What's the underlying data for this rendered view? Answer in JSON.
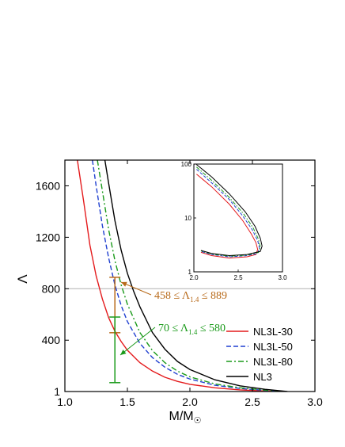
{
  "chart_data": [
    {
      "type": "line",
      "xlabel": "M/M",
      "xlabel_symbol": "☉",
      "ylabel": "Λ",
      "xlim": [
        1.0,
        3.0
      ],
      "ylim": [
        1,
        1800
      ],
      "xticks": [
        "1.0",
        "1.5",
        "2.0",
        "2.5",
        "3.0"
      ],
      "yticks": [
        "1",
        "400",
        "800",
        "1200",
        "1600"
      ],
      "xtick_values": [
        1.0,
        1.5,
        2.0,
        2.5,
        3.0
      ],
      "ytick_values": [
        1,
        400,
        800,
        1200,
        1600
      ],
      "reference_line": {
        "y": 800,
        "color": "#b0b0b0"
      },
      "legend_position": "bottom-right",
      "series": [
        {
          "name": "NL3L-30",
          "color": "#e41a1c",
          "dash": "solid",
          "points": [
            [
              1.1,
              1800
            ],
            [
              1.15,
              1480
            ],
            [
              1.2,
              1140
            ],
            [
              1.25,
              900
            ],
            [
              1.3,
              720
            ],
            [
              1.35,
              575
            ],
            [
              1.4,
              470
            ],
            [
              1.45,
              390
            ],
            [
              1.5,
              322
            ],
            [
              1.6,
              225
            ],
            [
              1.7,
              160
            ],
            [
              1.8,
              112
            ],
            [
              1.9,
              80
            ],
            [
              2.0,
              57
            ],
            [
              2.2,
              30
            ],
            [
              2.4,
              14
            ],
            [
              2.6,
              5
            ],
            [
              2.72,
              1
            ]
          ]
        },
        {
          "name": "NL3L-50",
          "color": "#1f3fd0",
          "dash": "dashed",
          "points": [
            [
              1.22,
              1800
            ],
            [
              1.25,
              1600
            ],
            [
              1.3,
              1290
            ],
            [
              1.35,
              1040
            ],
            [
              1.4,
              830
            ],
            [
              1.45,
              670
            ],
            [
              1.5,
              545
            ],
            [
              1.6,
              375
            ],
            [
              1.7,
              265
            ],
            [
              1.8,
              190
            ],
            [
              1.9,
              135
            ],
            [
              2.0,
              98
            ],
            [
              2.2,
              50
            ],
            [
              2.4,
              25
            ],
            [
              2.6,
              10
            ],
            [
              2.76,
              1
            ]
          ]
        },
        {
          "name": "NL3L-80",
          "color": "#1a9a1a",
          "dash": "dashdot",
          "points": [
            [
              1.26,
              1800
            ],
            [
              1.3,
              1560
            ],
            [
              1.35,
              1260
            ],
            [
              1.4,
              1020
            ],
            [
              1.45,
              830
            ],
            [
              1.5,
              680
            ],
            [
              1.6,
              460
            ],
            [
              1.7,
              320
            ],
            [
              1.8,
              225
            ],
            [
              1.9,
              160
            ],
            [
              2.0,
              115
            ],
            [
              2.2,
              60
            ],
            [
              2.4,
              30
            ],
            [
              2.6,
              12
            ],
            [
              2.77,
              1
            ]
          ]
        },
        {
          "name": "NL3",
          "color": "#000000",
          "dash": "solid",
          "points": [
            [
              1.32,
              1800
            ],
            [
              1.35,
              1620
            ],
            [
              1.4,
              1330
            ],
            [
              1.45,
              1100
            ],
            [
              1.5,
              920
            ],
            [
              1.55,
              780
            ],
            [
              1.6,
              660
            ],
            [
              1.7,
              460
            ],
            [
              1.8,
              330
            ],
            [
              1.9,
              235
            ],
            [
              2.0,
              172
            ],
            [
              2.2,
              92
            ],
            [
              2.4,
              45
            ],
            [
              2.6,
              18
            ],
            [
              2.78,
              1
            ]
          ]
        }
      ],
      "error_bars": [
        {
          "x": 1.4,
          "low": 458,
          "high": 889,
          "color": "#b86a1a",
          "label_prefix": "458 ≤ Λ",
          "label_sub": "1.4",
          "label_suffix": " ≤ 889"
        },
        {
          "x": 1.4,
          "low": 70,
          "high": 580,
          "color": "#1a9a1a",
          "label_prefix": "70 ≤ Λ",
          "label_sub": "1.4",
          "label_suffix": " ≤ 580"
        }
      ]
    },
    {
      "type": "line",
      "inset": true,
      "scale_y": "log",
      "xlim": [
        2.0,
        3.0
      ],
      "ylim": [
        1,
        100
      ],
      "xticks": [
        "2.0",
        "2.5",
        "3.0"
      ],
      "yticks": [
        "1",
        "10",
        "100"
      ],
      "xtick_values": [
        2.0,
        2.5,
        3.0
      ],
      "ytick_values": [
        1,
        10,
        100
      ],
      "series": [
        {
          "name": "NL3L-30",
          "color": "#e41a1c",
          "dash": "solid",
          "points": [
            [
              2.03,
              65
            ],
            [
              2.2,
              38
            ],
            [
              2.4,
              18
            ],
            [
              2.55,
              9
            ],
            [
              2.65,
              5
            ],
            [
              2.7,
              3.5
            ],
            [
              2.72,
              2.6
            ],
            [
              2.7,
              2.1
            ],
            [
              2.6,
              1.9
            ],
            [
              2.4,
              1.8
            ],
            [
              2.2,
              2.0
            ],
            [
              2.08,
              2.3
            ]
          ]
        },
        {
          "name": "NL3L-50",
          "color": "#1f3fd0",
          "dash": "dashed",
          "points": [
            [
              2.03,
              80
            ],
            [
              2.2,
              45
            ],
            [
              2.4,
              22
            ],
            [
              2.55,
              11
            ],
            [
              2.66,
              6
            ],
            [
              2.72,
              3.8
            ],
            [
              2.74,
              2.8
            ],
            [
              2.72,
              2.2
            ],
            [
              2.6,
              2.0
            ],
            [
              2.4,
              1.9
            ],
            [
              2.2,
              2.1
            ],
            [
              2.08,
              2.4
            ]
          ]
        },
        {
          "name": "NL3L-80",
          "color": "#1a9a1a",
          "dash": "dashdot",
          "points": [
            [
              2.03,
              88
            ],
            [
              2.2,
              50
            ],
            [
              2.4,
              24
            ],
            [
              2.56,
              12
            ],
            [
              2.67,
              6.5
            ],
            [
              2.73,
              4
            ],
            [
              2.75,
              2.9
            ],
            [
              2.73,
              2.3
            ],
            [
              2.6,
              2.05
            ],
            [
              2.4,
              1.95
            ],
            [
              2.2,
              2.15
            ],
            [
              2.08,
              2.45
            ]
          ]
        },
        {
          "name": "NL3",
          "color": "#000000",
          "dash": "solid",
          "points": [
            [
              2.03,
              98
            ],
            [
              2.2,
              58
            ],
            [
              2.4,
              28
            ],
            [
              2.58,
              13
            ],
            [
              2.69,
              7
            ],
            [
              2.75,
              4.2
            ],
            [
              2.77,
              3.0
            ],
            [
              2.75,
              2.4
            ],
            [
              2.6,
              2.1
            ],
            [
              2.4,
              2.0
            ],
            [
              2.2,
              2.2
            ],
            [
              2.08,
              2.5
            ]
          ]
        }
      ]
    }
  ]
}
